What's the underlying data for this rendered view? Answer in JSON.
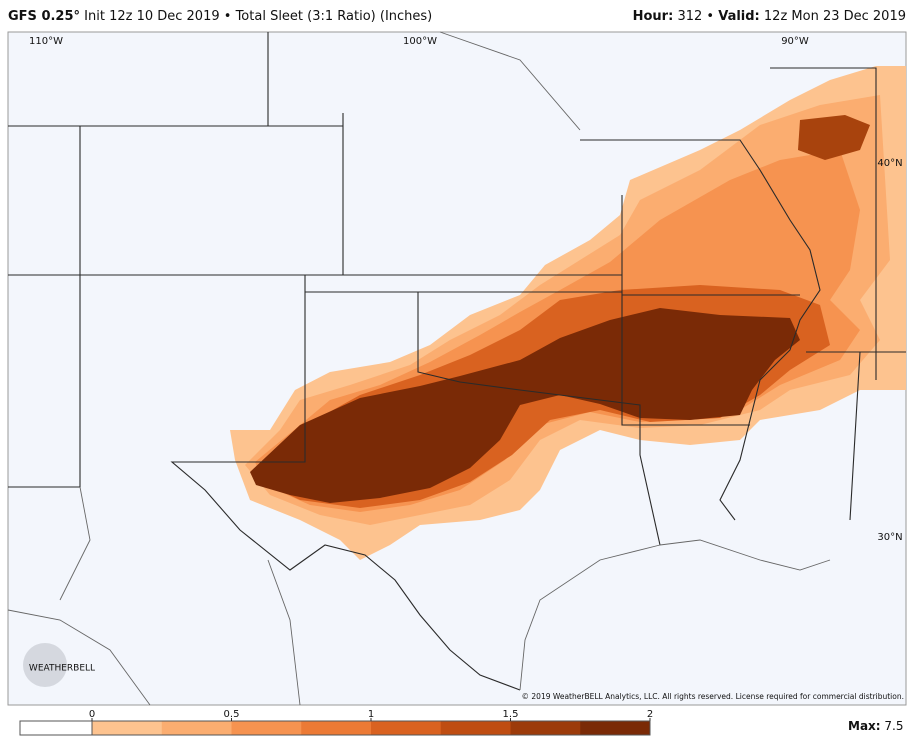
{
  "header": {
    "model": "GFS 0.25°",
    "init": "Init 12z 10 Dec 2019",
    "separator": "•",
    "product": "Total Sleet (3:1 Ratio) (Inches)",
    "hour_label": "Hour:",
    "hour": "312",
    "valid_label": "Valid:",
    "valid": "12z Mon 23 Dec 2019"
  },
  "map": {
    "lon_labels": [
      "110°W",
      "100°W",
      "90°W"
    ],
    "lat_labels": [
      "40°N",
      "30°N"
    ],
    "logo": "WEATHERBELL",
    "copyright": "© 2019 WeatherBELL Analytics, LLC. All rights reserved. License required for commercial distribution."
  },
  "colorbar": {
    "ticks": [
      0,
      0.5,
      1,
      1.5,
      2
    ],
    "colors": [
      "#fdc38f",
      "#fbad70",
      "#f69350",
      "#ec7a35",
      "#d96220",
      "#bf4d12",
      "#9c3b0a",
      "#7a2a06"
    ]
  },
  "max": {
    "label": "Max:",
    "value": 7.5
  }
}
